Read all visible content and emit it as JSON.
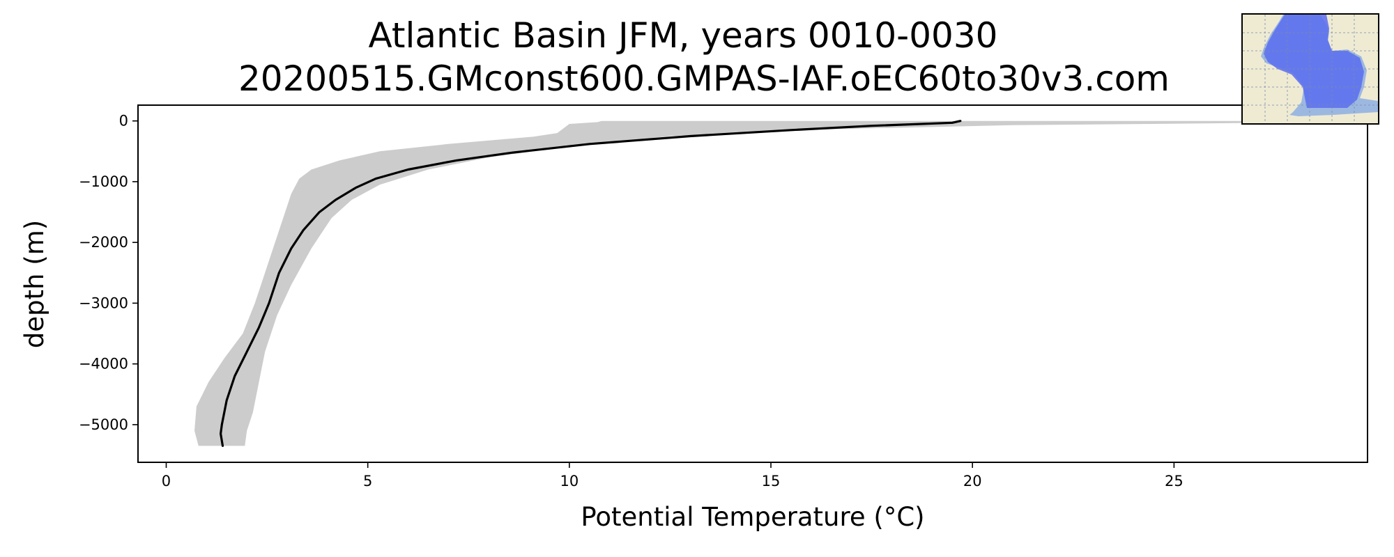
{
  "chart_data": {
    "type": "line",
    "title": "Atlantic Basin JFM, years 0010-0030",
    "subtitle": "20200515.GMconst600.GMPAS-IAF.oEC60to30v3.com",
    "xlabel": "Potential Temperature (°C)",
    "ylabel": "depth (m)",
    "xlim": [
      -0.7,
      29.8
    ],
    "ylim": [
      -5620,
      260
    ],
    "xticks": [
      0,
      5,
      10,
      15,
      20,
      25
    ],
    "yticks": [
      0,
      -1000,
      -2000,
      -3000,
      -4000,
      -5000
    ],
    "xtick_labels": [
      "0",
      "5",
      "10",
      "15",
      "20",
      "25"
    ],
    "ytick_labels": [
      "0",
      "−1000",
      "−2000",
      "−3000",
      "−4000",
      "−5000"
    ],
    "grid": false,
    "mean_profile": {
      "color": "#000000",
      "points": [
        {
          "x": 19.7,
          "y": 0
        },
        {
          "x": 19.5,
          "y": -30
        },
        {
          "x": 17.5,
          "y": -80
        },
        {
          "x": 15.5,
          "y": -150
        },
        {
          "x": 13.0,
          "y": -250
        },
        {
          "x": 10.5,
          "y": -380
        },
        {
          "x": 8.6,
          "y": -520
        },
        {
          "x": 7.2,
          "y": -650
        },
        {
          "x": 6.0,
          "y": -800
        },
        {
          "x": 5.2,
          "y": -950
        },
        {
          "x": 4.7,
          "y": -1100
        },
        {
          "x": 4.2,
          "y": -1300
        },
        {
          "x": 3.8,
          "y": -1500
        },
        {
          "x": 3.4,
          "y": -1800
        },
        {
          "x": 3.1,
          "y": -2100
        },
        {
          "x": 2.8,
          "y": -2500
        },
        {
          "x": 2.55,
          "y": -3000
        },
        {
          "x": 2.3,
          "y": -3400
        },
        {
          "x": 2.0,
          "y": -3800
        },
        {
          "x": 1.7,
          "y": -4200
        },
        {
          "x": 1.5,
          "y": -4600
        },
        {
          "x": 1.38,
          "y": -5000
        },
        {
          "x": 1.35,
          "y": -5150
        },
        {
          "x": 1.4,
          "y": -5350
        }
      ]
    },
    "spread_band": {
      "color": "#cccccc",
      "lower": [
        {
          "x": 10.8,
          "y": 0
        },
        {
          "x": 10.7,
          "y": -20
        },
        {
          "x": 10.0,
          "y": -50
        },
        {
          "x": 9.7,
          "y": -200
        },
        {
          "x": 9.1,
          "y": -260
        },
        {
          "x": 7.0,
          "y": -380
        },
        {
          "x": 5.3,
          "y": -500
        },
        {
          "x": 4.3,
          "y": -650
        },
        {
          "x": 3.6,
          "y": -800
        },
        {
          "x": 3.3,
          "y": -950
        },
        {
          "x": 3.1,
          "y": -1200
        },
        {
          "x": 2.95,
          "y": -1500
        },
        {
          "x": 2.7,
          "y": -2000
        },
        {
          "x": 2.4,
          "y": -2600
        },
        {
          "x": 2.2,
          "y": -3000
        },
        {
          "x": 1.9,
          "y": -3500
        },
        {
          "x": 1.45,
          "y": -3900
        },
        {
          "x": 1.05,
          "y": -4300
        },
        {
          "x": 0.75,
          "y": -4700
        },
        {
          "x": 0.7,
          "y": -5100
        },
        {
          "x": 0.8,
          "y": -5350
        }
      ],
      "upper": [
        {
          "x": 29.8,
          "y": 0
        },
        {
          "x": 27.5,
          "y": -30
        },
        {
          "x": 21.0,
          "y": -70
        },
        {
          "x": 15.5,
          "y": -150
        },
        {
          "x": 12.5,
          "y": -250
        },
        {
          "x": 10.0,
          "y": -420
        },
        {
          "x": 8.0,
          "y": -600
        },
        {
          "x": 6.5,
          "y": -800
        },
        {
          "x": 5.3,
          "y": -1050
        },
        {
          "x": 4.6,
          "y": -1300
        },
        {
          "x": 4.1,
          "y": -1600
        },
        {
          "x": 3.6,
          "y": -2100
        },
        {
          "x": 3.1,
          "y": -2700
        },
        {
          "x": 2.75,
          "y": -3200
        },
        {
          "x": 2.45,
          "y": -3800
        },
        {
          "x": 2.3,
          "y": -4300
        },
        {
          "x": 2.15,
          "y": -4800
        },
        {
          "x": 2.0,
          "y": -5100
        },
        {
          "x": 1.95,
          "y": -5350
        }
      ]
    }
  },
  "inset_map": {
    "icon": "atlantic-basin-map-icon",
    "land_color": "#efebd3",
    "ocean_color": "#9db8e0",
    "region_color": "#5a6cf0"
  }
}
